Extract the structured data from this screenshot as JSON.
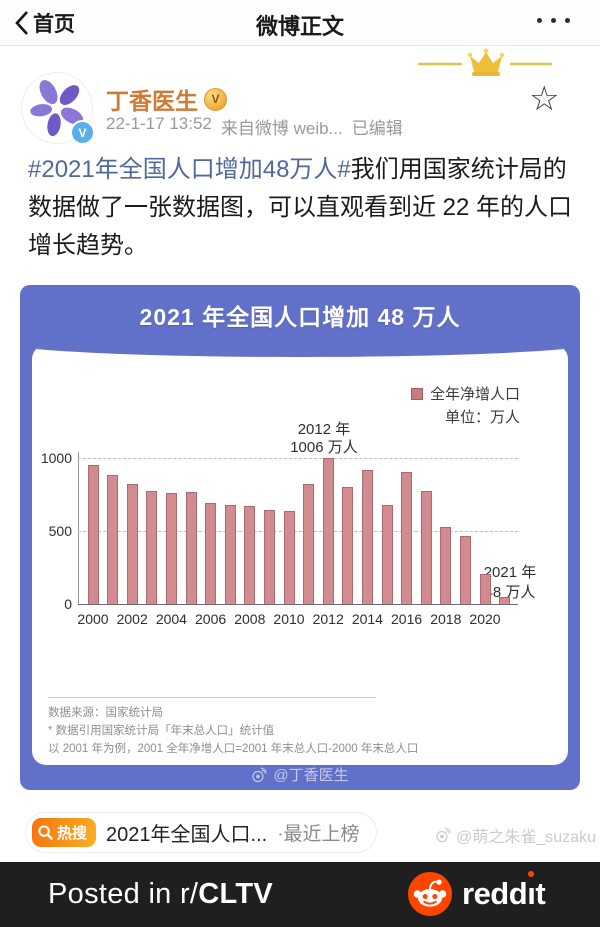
{
  "nav": {
    "back_label": "首页",
    "title": "微博正文"
  },
  "post": {
    "author": "丁香医生",
    "timestamp": "22-1-17 13:52",
    "source": "来自微博 weib...",
    "edited": "已编辑",
    "hashtag": "#2021年全国人口增加48万人#",
    "body": "我们用国家统计局的数据做了一张数据图，可以直观看到近 22 年的人口增长趋势。"
  },
  "chart_data": {
    "type": "bar",
    "title": "2021 年全国人口增加 48 万人",
    "legend": "全年净增人口",
    "unit_label": "单位：万人",
    "categories": [
      "2000",
      "2001",
      "2002",
      "2003",
      "2004",
      "2005",
      "2006",
      "2007",
      "2008",
      "2009",
      "2010",
      "2011",
      "2012",
      "2013",
      "2014",
      "2015",
      "2016",
      "2017",
      "2018",
      "2019",
      "2020",
      "2021"
    ],
    "values": [
      957,
      884,
      826,
      774,
      761,
      768,
      692,
      681,
      673,
      648,
      641,
      825,
      1006,
      804,
      920,
      680,
      906,
      779,
      530,
      467,
      204,
      48
    ],
    "x_tick_labels": [
      "2000",
      "2002",
      "2004",
      "2006",
      "2008",
      "2010",
      "2012",
      "2014",
      "2016",
      "2018",
      "2020"
    ],
    "y_ticks": [
      0,
      500,
      1000
    ],
    "ylim": [
      0,
      1050
    ],
    "grid": "dashed-horizontal",
    "legend_position": "top-right",
    "bar_color": "#D28B90",
    "background_color": "#6170C8",
    "annotation_2012": {
      "line1": "2012 年",
      "line2": "1006 万人"
    },
    "annotation_2021": {
      "line1": "2021 年",
      "line2": "48 万人"
    },
    "source_note": "数据来源：国家统计局",
    "footnote_1": "* 数据引用国家统计局「年末总人口」统计值",
    "footnote_2": "以 2001 年为例，2001 全年净增人口=2001 年末总人口-2000 年末总人口",
    "watermark": "@丁香医生"
  },
  "hot_search": {
    "badge_label": "热搜",
    "title": "2021年全国人口...",
    "suffix": "·最近上榜"
  },
  "page_watermark": "@萌之朱雀_suzaku",
  "reddit_bar": {
    "posted_prefix": "Posted in r/",
    "subreddit": "CLTV",
    "brand": "reddit",
    "brand_color": "#FF4500"
  }
}
